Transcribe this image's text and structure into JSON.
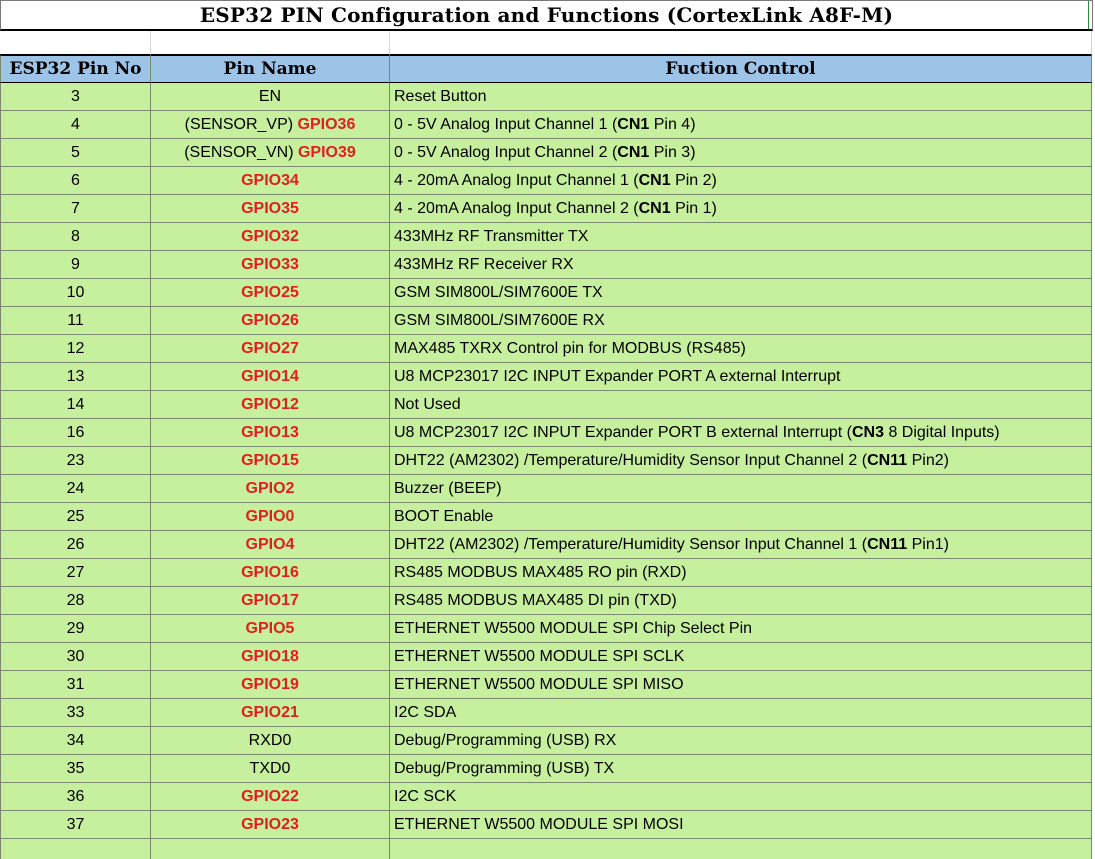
{
  "title": "ESP32 PIN Configuration and Functions (CortexLink A8F-M)",
  "headers": [
    "ESP32 Pin No",
    "Pin Name",
    "Fuction Control"
  ],
  "colors": {
    "header_bg": "#9dc3e6",
    "row_bg": "#c6ef9e",
    "gpio_red": "#e02020"
  },
  "rows": [
    {
      "pin": "3",
      "name": [
        {
          "t": "EN"
        }
      ],
      "fn": [
        {
          "t": "Reset Button"
        }
      ]
    },
    {
      "pin": "4",
      "name": [
        {
          "t": "(SENSOR_VP) "
        },
        {
          "t": "GPIO36",
          "s": "red"
        }
      ],
      "fn": [
        {
          "t": "0 - 5V Analog Input Channel 1 ("
        },
        {
          "t": "CN1",
          "s": "b"
        },
        {
          "t": " Pin 4)"
        }
      ]
    },
    {
      "pin": "5",
      "name": [
        {
          "t": "(SENSOR_VN) "
        },
        {
          "t": "GPIO39",
          "s": "red"
        }
      ],
      "fn": [
        {
          "t": "0 - 5V Analog Input Channel 2 ("
        },
        {
          "t": "CN1",
          "s": "b"
        },
        {
          "t": " Pin 3)"
        }
      ]
    },
    {
      "pin": "6",
      "name": [
        {
          "t": "GPIO34",
          "s": "red"
        }
      ],
      "fn": [
        {
          "t": "4 - 20mA Analog Input Channel 1 ("
        },
        {
          "t": "CN1",
          "s": "b"
        },
        {
          "t": " Pin 2)"
        }
      ]
    },
    {
      "pin": "7",
      "name": [
        {
          "t": "GPIO35",
          "s": "red"
        }
      ],
      "fn": [
        {
          "t": "4 - 20mA Analog Input Channel 2 ("
        },
        {
          "t": "CN1",
          "s": "b"
        },
        {
          "t": " Pin 1)"
        }
      ]
    },
    {
      "pin": "8",
      "name": [
        {
          "t": "GPIO32",
          "s": "red"
        }
      ],
      "fn": [
        {
          "t": "433MHz RF Transmitter TX"
        }
      ]
    },
    {
      "pin": "9",
      "name": [
        {
          "t": "GPIO33",
          "s": "red"
        }
      ],
      "fn": [
        {
          "t": "433MHz RF Receiver RX"
        }
      ]
    },
    {
      "pin": "10",
      "name": [
        {
          "t": "GPIO25",
          "s": "red"
        }
      ],
      "fn": [
        {
          "t": "GSM SIM800L/SIM7600E TX"
        }
      ]
    },
    {
      "pin": "11",
      "name": [
        {
          "t": "GPIO26",
          "s": "red"
        }
      ],
      "fn": [
        {
          "t": "GSM SIM800L/SIM7600E RX"
        }
      ]
    },
    {
      "pin": "12",
      "name": [
        {
          "t": "GPIO27",
          "s": "red"
        }
      ],
      "fn": [
        {
          "t": "MAX485 TXRX Control pin for MODBUS (RS485)"
        }
      ]
    },
    {
      "pin": "13",
      "name": [
        {
          "t": "GPIO14",
          "s": "red"
        }
      ],
      "fn": [
        {
          "t": "U8 MCP23017 I2C INPUT Expander PORT A external Interrupt"
        }
      ]
    },
    {
      "pin": "14",
      "name": [
        {
          "t": "GPIO12",
          "s": "red"
        }
      ],
      "fn": [
        {
          "t": "Not Used"
        }
      ]
    },
    {
      "pin": "16",
      "name": [
        {
          "t": "GPIO13",
          "s": "red"
        }
      ],
      "fn": [
        {
          "t": "U8 MCP23017 I2C INPUT Expander PORT B external Interrupt ("
        },
        {
          "t": "CN3",
          "s": "b"
        },
        {
          "t": " 8 Digital Inputs)"
        }
      ]
    },
    {
      "pin": "23",
      "name": [
        {
          "t": "GPIO15",
          "s": "red"
        }
      ],
      "fn": [
        {
          "t": "DHT22 (AM2302) /Temperature/Humidity Sensor Input Channel 2 ("
        },
        {
          "t": "CN11",
          "s": "b"
        },
        {
          "t": " Pin2)"
        }
      ]
    },
    {
      "pin": "24",
      "name": [
        {
          "t": "GPIO2",
          "s": "red"
        }
      ],
      "fn": [
        {
          "t": "Buzzer (BEEP)"
        }
      ]
    },
    {
      "pin": "25",
      "name": [
        {
          "t": "GPIO0",
          "s": "red"
        }
      ],
      "fn": [
        {
          "t": "BOOT Enable"
        }
      ]
    },
    {
      "pin": "26",
      "name": [
        {
          "t": "GPIO4",
          "s": "red"
        }
      ],
      "fn": [
        {
          "t": "DHT22 (AM2302) /Temperature/Humidity Sensor Input Channel 1 ("
        },
        {
          "t": "CN11",
          "s": "b"
        },
        {
          "t": " Pin1)"
        }
      ]
    },
    {
      "pin": "27",
      "name": [
        {
          "t": "GPIO16",
          "s": "red"
        }
      ],
      "fn": [
        {
          "t": "RS485 MODBUS MAX485 RO pin (RXD)"
        }
      ]
    },
    {
      "pin": "28",
      "name": [
        {
          "t": "GPIO17",
          "s": "red"
        }
      ],
      "fn": [
        {
          "t": "RS485 MODBUS MAX485 DI pin (TXD)"
        }
      ]
    },
    {
      "pin": "29",
      "name": [
        {
          "t": "GPIO5",
          "s": "red"
        }
      ],
      "fn": [
        {
          "t": "ETHERNET W5500 MODULE SPI Chip Select Pin"
        }
      ]
    },
    {
      "pin": "30",
      "name": [
        {
          "t": "GPIO18",
          "s": "red"
        }
      ],
      "fn": [
        {
          "t": "ETHERNET W5500 MODULE  SPI SCLK"
        }
      ]
    },
    {
      "pin": "31",
      "name": [
        {
          "t": "GPIO19",
          "s": "red"
        }
      ],
      "fn": [
        {
          "t": "ETHERNET W5500 MODULE  SPI MISO"
        }
      ]
    },
    {
      "pin": "33",
      "name": [
        {
          "t": "GPIO21",
          "s": "red"
        }
      ],
      "fn": [
        {
          "t": "I2C SDA"
        }
      ]
    },
    {
      "pin": "34",
      "name": [
        {
          "t": "RXD0"
        }
      ],
      "fn": [
        {
          "t": "Debug/Programming (USB) RX"
        }
      ]
    },
    {
      "pin": "35",
      "name": [
        {
          "t": "TXD0"
        }
      ],
      "fn": [
        {
          "t": "Debug/Programming (USB) TX"
        }
      ]
    },
    {
      "pin": "36",
      "name": [
        {
          "t": "GPIO22",
          "s": "red"
        }
      ],
      "fn": [
        {
          "t": "I2C SCK"
        }
      ]
    },
    {
      "pin": "37",
      "name": [
        {
          "t": "GPIO23",
          "s": "red"
        }
      ],
      "fn": [
        {
          "t": "ETHERNET W5500 MODULE  SPI MOSI"
        }
      ]
    }
  ]
}
